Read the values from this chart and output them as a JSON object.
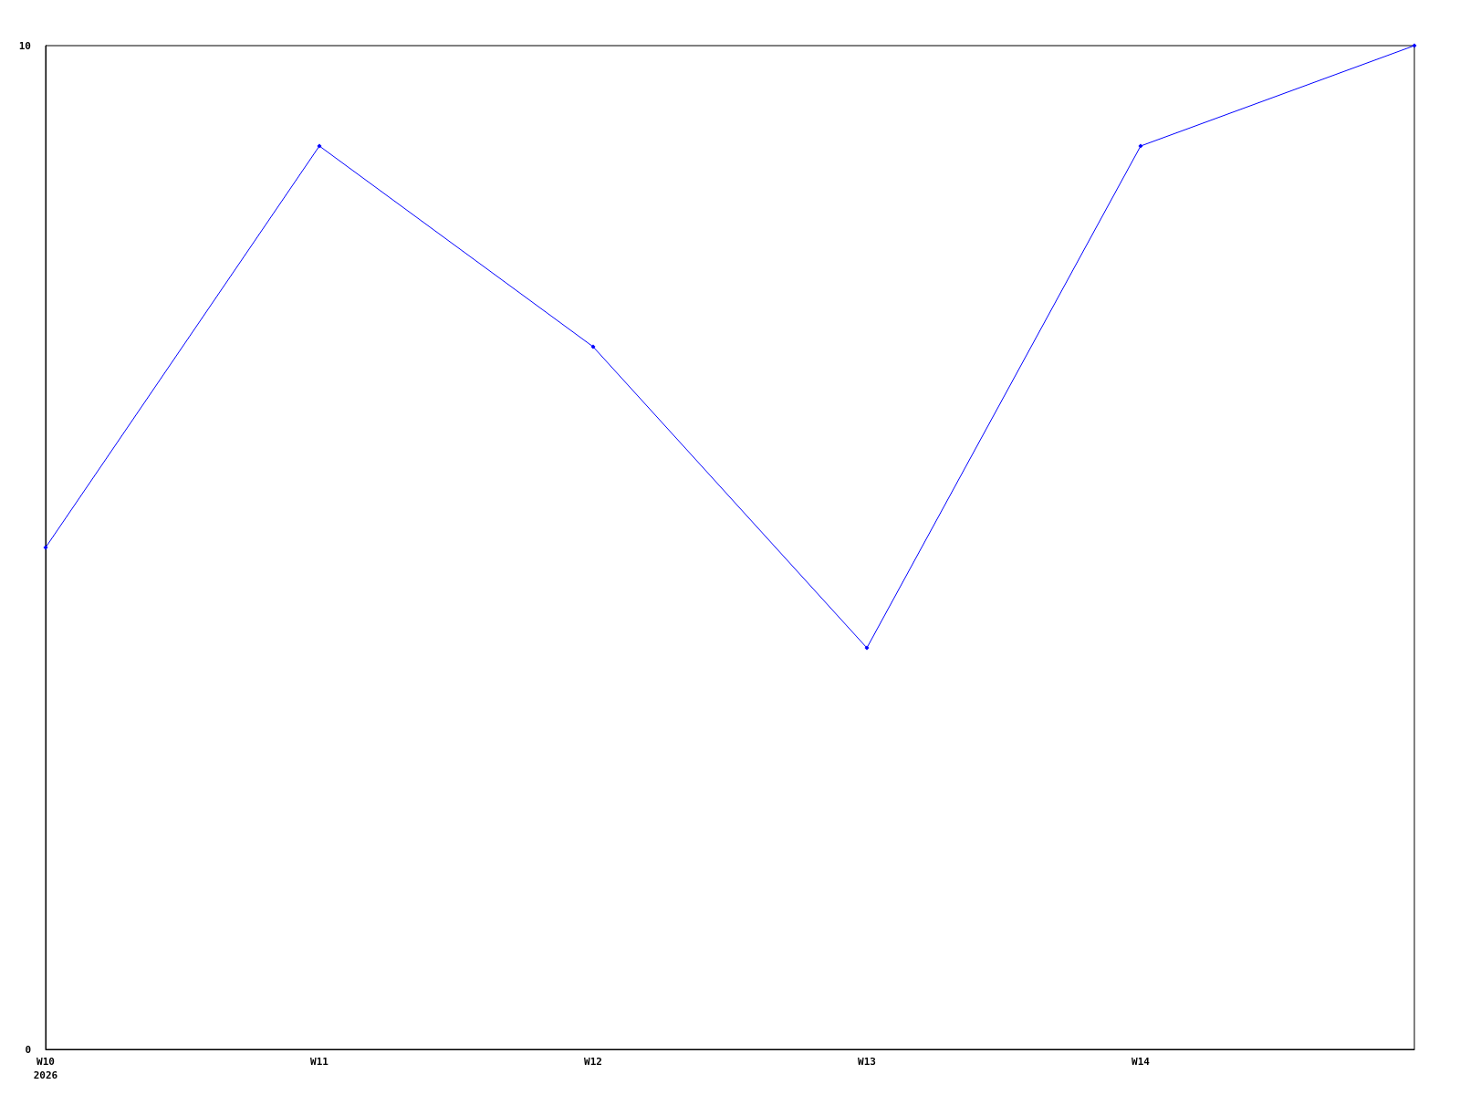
{
  "chart_data": {
    "type": "line",
    "categories": [
      "W10\n2026",
      "W11",
      "W12",
      "W13",
      "W14",
      null
    ],
    "series": [
      {
        "color": "#0000ff",
        "values": [
          5,
          9,
          7,
          4,
          9,
          10
        ]
      }
    ],
    "ylim": [
      0,
      10
    ],
    "yticks": [
      0,
      10
    ],
    "grid": false,
    "marker": "diamond",
    "line_style": "solid"
  }
}
